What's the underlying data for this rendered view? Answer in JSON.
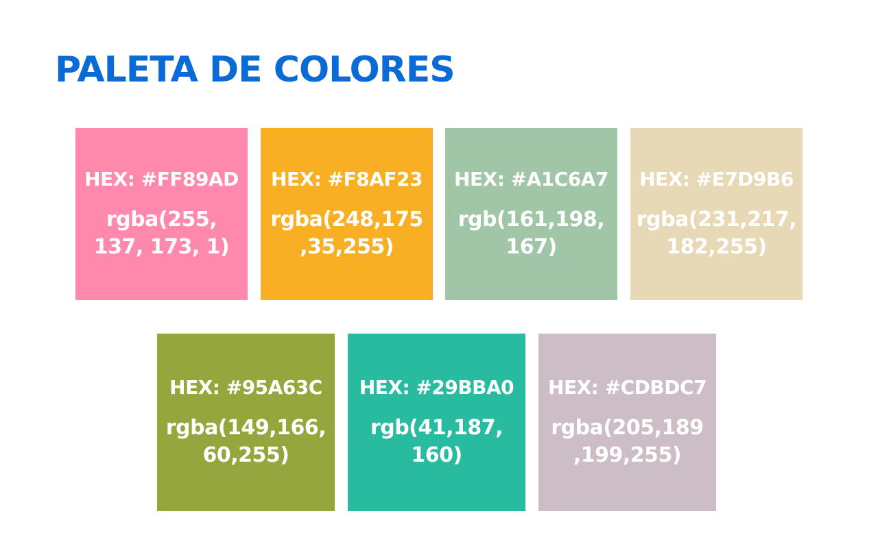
{
  "title": {
    "text": "PALETA DE COLORES",
    "color": "#0A6AD6"
  },
  "swatches": [
    {
      "hex_label": "HEX: #FF89AD",
      "rgb_label": "rgba(255,\n137, 173, 1)",
      "color": "#FF89AD"
    },
    {
      "hex_label": "HEX: #F8AF23",
      "rgb_label": "rgba(248,175\n,35,255)",
      "color": "#F8AF23"
    },
    {
      "hex_label": "HEX: #A1C6A7",
      "rgb_label": "rgb(161,198,\n167)",
      "color": "#A1C6A7"
    },
    {
      "hex_label": "HEX: #E7D9B6",
      "rgb_label": "rgba(231,217,\n182,255)",
      "color": "#E7D9B6"
    },
    {
      "hex_label": "HEX: #95A63C",
      "rgb_label": "rgba(149,166,\n60,255)",
      "color": "#95A63C"
    },
    {
      "hex_label": "HEX: #29BBA0",
      "rgb_label": "rgb(41,187,\n160)",
      "color": "#29BBA0"
    },
    {
      "hex_label": "HEX: #CDBDC7",
      "rgb_label": "rgba(205,189\n,199,255)",
      "color": "#CDBDC7"
    }
  ]
}
